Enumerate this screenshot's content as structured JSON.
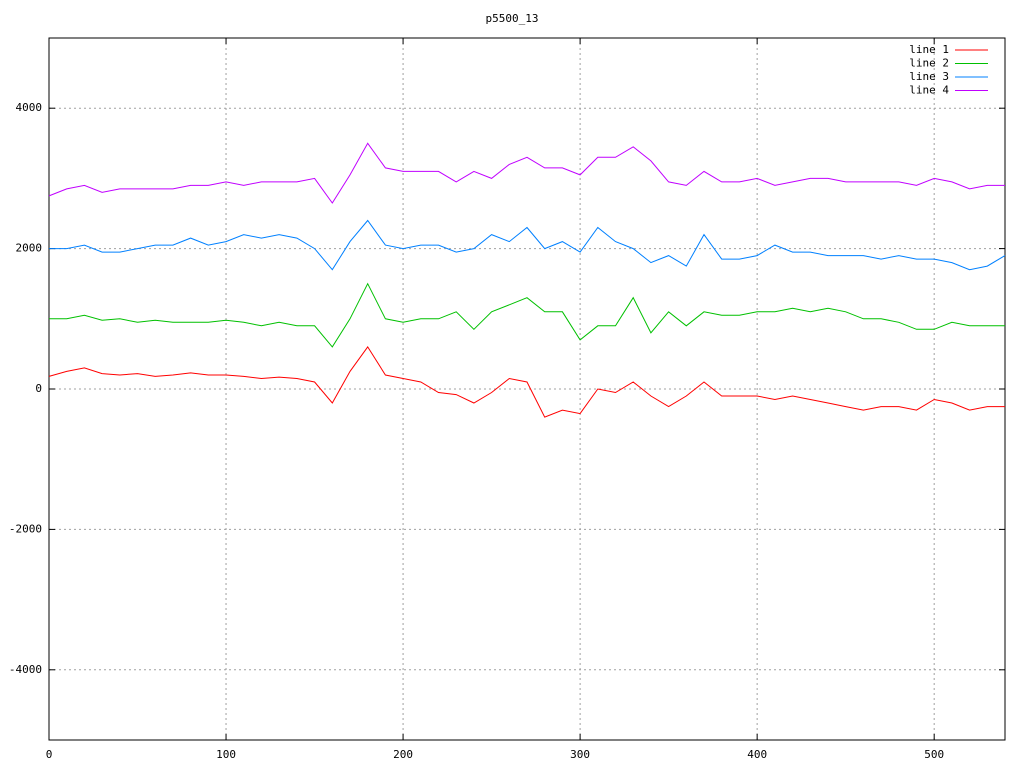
{
  "chart_data": {
    "type": "line",
    "title": "p5500_13",
    "x": [
      0,
      10,
      20,
      30,
      40,
      50,
      60,
      70,
      80,
      90,
      100,
      110,
      120,
      130,
      140,
      150,
      160,
      170,
      180,
      190,
      200,
      210,
      220,
      230,
      240,
      250,
      260,
      270,
      280,
      290,
      300,
      310,
      320,
      330,
      340,
      350,
      360,
      370,
      380,
      390,
      400,
      410,
      420,
      430,
      440,
      450,
      460,
      470,
      480,
      490,
      500,
      510,
      520,
      530,
      540
    ],
    "series": [
      {
        "name": "line 1",
        "color": "#ff0000",
        "values": [
          180,
          250,
          300,
          220,
          200,
          220,
          180,
          200,
          230,
          200,
          200,
          180,
          150,
          170,
          150,
          100,
          -200,
          250,
          600,
          200,
          150,
          100,
          -50,
          -80,
          -200,
          -50,
          150,
          100,
          -400,
          -300,
          -350,
          0,
          -50,
          100,
          -100,
          -250,
          -100,
          100,
          -100,
          -100,
          -100,
          -150,
          -100,
          -150,
          -200,
          -250,
          -300,
          -250,
          -250,
          -300,
          -150,
          -200,
          -300,
          -250,
          -250
        ]
      },
      {
        "name": "line 2",
        "color": "#00c000",
        "values": [
          1000,
          1000,
          1050,
          980,
          1000,
          950,
          980,
          950,
          950,
          950,
          980,
          950,
          900,
          950,
          900,
          900,
          600,
          1000,
          1500,
          1000,
          950,
          1000,
          1000,
          1100,
          850,
          1100,
          1200,
          1300,
          1100,
          1100,
          700,
          900,
          900,
          1300,
          800,
          1100,
          900,
          1100,
          1050,
          1050,
          1100,
          1100,
          1150,
          1100,
          1150,
          1100,
          1000,
          1000,
          950,
          850,
          850,
          950,
          900,
          900,
          900
        ]
      },
      {
        "name": "line 3",
        "color": "#0080ff",
        "values": [
          2000,
          2000,
          2050,
          1950,
          1950,
          2000,
          2050,
          2050,
          2150,
          2050,
          2100,
          2200,
          2150,
          2200,
          2150,
          2000,
          1700,
          2100,
          2400,
          2050,
          2000,
          2050,
          2050,
          1950,
          2000,
          2200,
          2100,
          2300,
          2000,
          2100,
          1950,
          2300,
          2100,
          2000,
          1800,
          1900,
          1750,
          2200,
          1850,
          1850,
          1900,
          2050,
          1950,
          1950,
          1900,
          1900,
          1900,
          1850,
          1900,
          1850,
          1850,
          1800,
          1700,
          1750,
          1900
        ]
      },
      {
        "name": "line 4",
        "color": "#c000ff",
        "values": [
          2750,
          2850,
          2900,
          2800,
          2850,
          2850,
          2850,
          2850,
          2900,
          2900,
          2950,
          2900,
          2950,
          2950,
          2950,
          3000,
          2650,
          3050,
          3500,
          3150,
          3100,
          3100,
          3100,
          2950,
          3100,
          3000,
          3200,
          3300,
          3150,
          3150,
          3050,
          3300,
          3300,
          3450,
          3250,
          2950,
          2900,
          3100,
          2950,
          2950,
          3000,
          2900,
          2950,
          3000,
          3000,
          2950,
          2950,
          2950,
          2950,
          2900,
          3000,
          2950,
          2850,
          2900,
          2900
        ]
      }
    ],
    "xlim": [
      0,
      540
    ],
    "xticks": [
      0,
      100,
      200,
      300,
      400,
      500
    ],
    "ylim": [
      -5000,
      5000
    ],
    "yticks": [
      -4000,
      -2000,
      0,
      2000,
      4000
    ],
    "grid": true,
    "legend": "top-right"
  }
}
